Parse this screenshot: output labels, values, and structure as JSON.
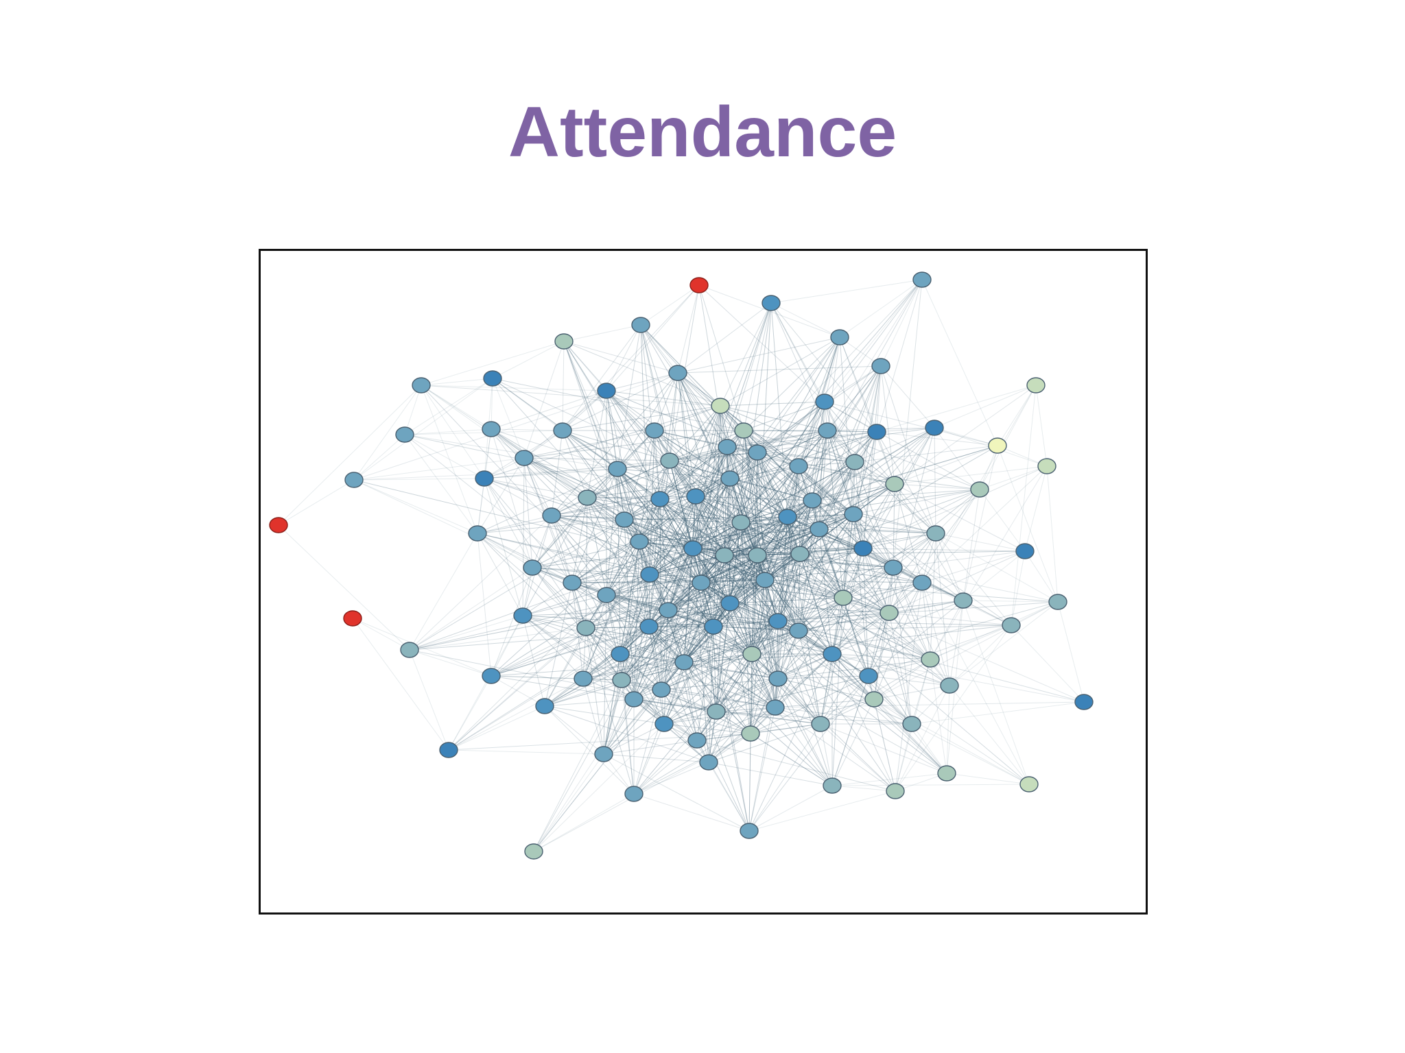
{
  "slide": {
    "title": "Attendance",
    "title_color": "#7f63a4"
  },
  "network": {
    "legend": "none",
    "edge_color": "#3d5f73",
    "node_stroke": "#4a6070",
    "palette": {
      "red": "#e0332b",
      "deep-blue": "#3b82b8",
      "blue": "#4e93c0",
      "steel": "#6ea4bf",
      "teal": "#8ab4bc",
      "sage": "#a9c9ba",
      "pale": "#c6ddbc",
      "yellow": "#f0f5bc"
    },
    "node_count": 112
  }
}
